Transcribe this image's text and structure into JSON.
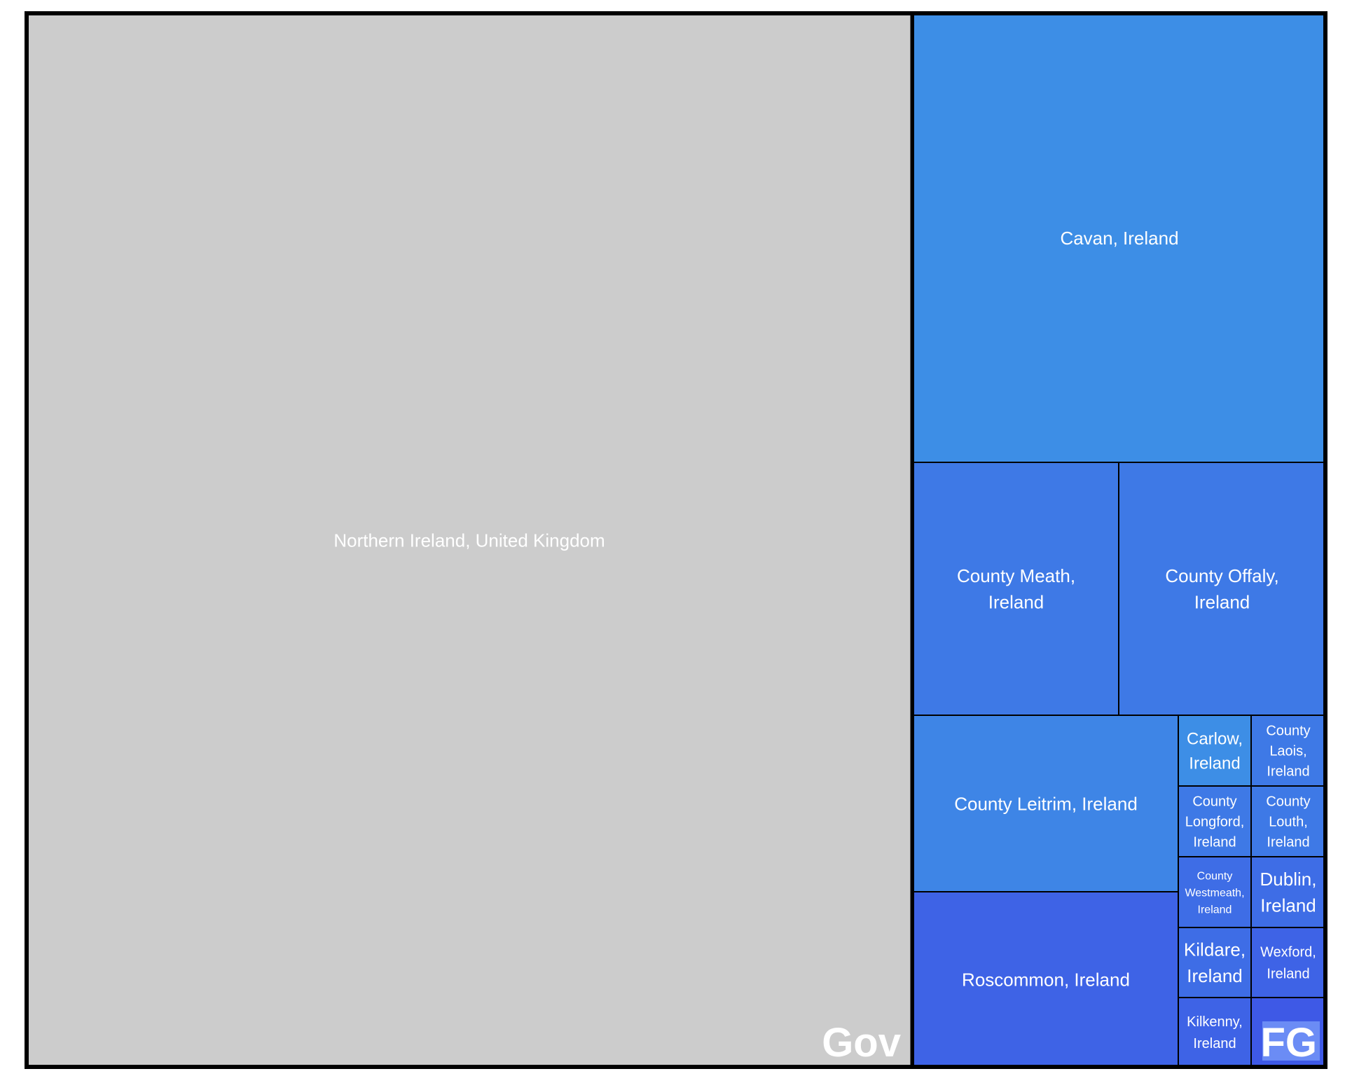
{
  "chart_data": {
    "type": "treemap",
    "groups": [
      {
        "name": "Gov",
        "color": "#cccccc",
        "items": [
          {
            "label": "Northern Ireland, United Kingdom",
            "lines": [
              "Northern Ireland, United Kingdom"
            ],
            "value": 46.1,
            "color": "#cccccc"
          }
        ]
      },
      {
        "name": "FG",
        "color": "#6b8cf5",
        "items": [
          {
            "label": "Cavan, Ireland",
            "lines": [
              "Cavan, Ireland"
            ],
            "value": 9.5,
            "color": "#3d8ee6"
          },
          {
            "label": "County Meath, Ireland",
            "lines": [
              "County Meath,",
              "Ireland"
            ],
            "value": 5.3,
            "color": "#3e79e6"
          },
          {
            "label": "County Offaly, Ireland",
            "lines": [
              "County Offaly,",
              "Ireland"
            ],
            "value": 5.3,
            "color": "#3e79e6"
          },
          {
            "label": "County Leitrim, Ireland",
            "lines": [
              "County Leitrim, Ireland"
            ],
            "value": 4.8,
            "color": "#3e85e6"
          },
          {
            "label": "Roscommon, Ireland",
            "lines": [
              "Roscommon, Ireland"
            ],
            "value": 4.8,
            "color": "#3e63e6"
          },
          {
            "label": "Carlow, Ireland",
            "lines": [
              "Carlow,",
              "Ireland"
            ],
            "value": 1.0,
            "color": "#3d8ee6"
          },
          {
            "label": "County Laois, Ireland",
            "lines": [
              "County",
              "Laois,",
              "Ireland"
            ],
            "value": 1.0,
            "color": "#3e79e6"
          },
          {
            "label": "County Longford, Ireland",
            "lines": [
              "County",
              "Longford,",
              "Ireland"
            ],
            "value": 1.0,
            "color": "#3e79e6"
          },
          {
            "label": "County Louth, Ireland",
            "lines": [
              "County",
              "Louth,",
              "Ireland"
            ],
            "value": 1.0,
            "color": "#3e79e6"
          },
          {
            "label": "County Westmeath, Ireland",
            "lines": [
              "County",
              "Westmeath,",
              "Ireland"
            ],
            "value": 1.0,
            "color": "#3e6de6"
          },
          {
            "label": "Dublin, Ireland",
            "lines": [
              "Dublin,",
              "Ireland"
            ],
            "value": 1.0,
            "color": "#3e6de6"
          },
          {
            "label": "Kildare, Ireland",
            "lines": [
              "Kildare,",
              "Ireland"
            ],
            "value": 1.0,
            "color": "#3e6de6"
          },
          {
            "label": "Wexford, Ireland",
            "lines": [
              "Wexford,",
              "Ireland"
            ],
            "value": 1.0,
            "color": "#3e63e6"
          },
          {
            "label": "Kilkenny, Ireland",
            "lines": [
              "Kilkenny,",
              "Ireland"
            ],
            "value": 1.0,
            "color": "#3e63e6"
          },
          {
            "label": "",
            "lines": [],
            "value": 1.0,
            "color": "#3e59e6"
          }
        ]
      }
    ]
  }
}
